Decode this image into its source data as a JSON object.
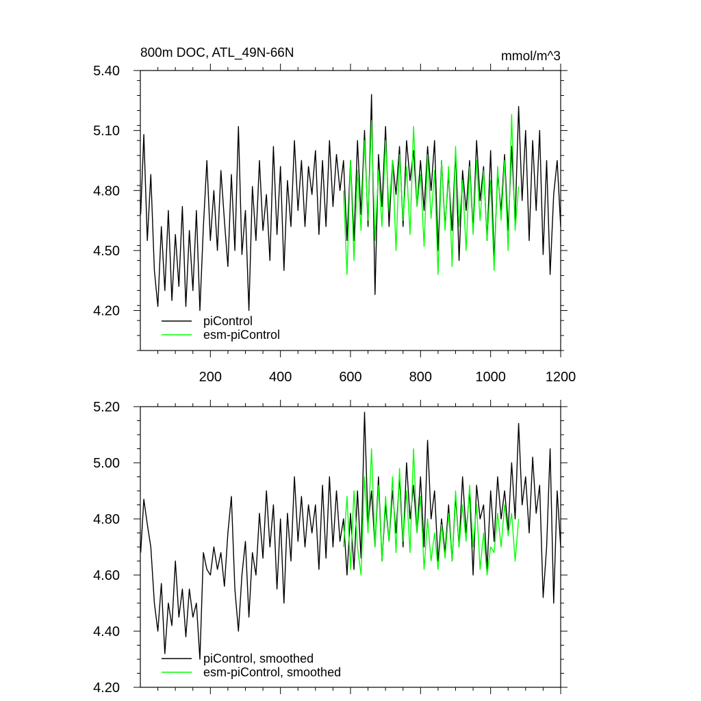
{
  "chart_data": [
    {
      "type": "line",
      "title": "800m DOC, ATL_49N-66N",
      "units": "mmol/m^3",
      "xlim": [
        0,
        1200
      ],
      "ylim": [
        4.0,
        5.4
      ],
      "x_ticks": [
        200,
        400,
        600,
        800,
        1000,
        1200
      ],
      "x_tick_labels": [
        "200",
        "400",
        "600",
        "800",
        "1000",
        "1200"
      ],
      "y_ticks": [
        4.2,
        4.5,
        4.8,
        5.1,
        5.4
      ],
      "y_tick_labels": [
        "4.20",
        "4.50",
        "4.80",
        "5.10",
        "5.40"
      ],
      "legend_position": "bottom-left",
      "series": [
        {
          "name": "piControl",
          "color": "#000000",
          "x": [
            1,
            10,
            20,
            30,
            40,
            50,
            60,
            70,
            80,
            90,
            100,
            110,
            120,
            130,
            140,
            150,
            160,
            170,
            180,
            190,
            200,
            210,
            220,
            230,
            240,
            250,
            260,
            270,
            280,
            290,
            300,
            310,
            320,
            330,
            340,
            350,
            360,
            370,
            380,
            390,
            400,
            410,
            420,
            430,
            440,
            450,
            460,
            470,
            480,
            490,
            500,
            510,
            520,
            530,
            540,
            550,
            560,
            570,
            580,
            590,
            600,
            610,
            620,
            630,
            640,
            650,
            660,
            670,
            680,
            690,
            700,
            710,
            720,
            730,
            740,
            750,
            760,
            770,
            780,
            790,
            800,
            810,
            820,
            830,
            840,
            850,
            860,
            870,
            880,
            890,
            900,
            910,
            920,
            930,
            940,
            950,
            960,
            970,
            980,
            990,
            1000,
            1010,
            1020,
            1030,
            1040,
            1050,
            1060,
            1070,
            1080,
            1090,
            1100,
            1110,
            1120,
            1130,
            1140,
            1150,
            1160,
            1170,
            1180,
            1190,
            1200
          ],
          "y": [
            4.68,
            5.08,
            4.55,
            4.88,
            4.4,
            4.22,
            4.62,
            4.3,
            4.7,
            4.25,
            4.58,
            4.32,
            4.72,
            4.22,
            4.6,
            4.3,
            4.7,
            4.2,
            4.62,
            4.95,
            4.55,
            4.8,
            4.5,
            4.9,
            4.65,
            4.42,
            4.88,
            4.5,
            5.12,
            4.48,
            4.7,
            4.2,
            4.82,
            4.55,
            4.95,
            4.6,
            4.78,
            4.45,
            5.02,
            4.58,
            4.92,
            4.4,
            4.85,
            4.62,
            5.05,
            4.7,
            4.95,
            4.62,
            4.92,
            4.78,
            5.0,
            4.58,
            4.95,
            4.62,
            5.05,
            4.72,
            4.98,
            4.8,
            4.95,
            4.55,
            4.95,
            4.55,
            5.05,
            4.68,
            5.1,
            4.62,
            5.28,
            4.28,
            4.98,
            4.72,
            5.12,
            4.62,
            4.95,
            4.78,
            5.02,
            4.62,
            5.05,
            4.85,
            5.0,
            4.72,
            4.95,
            4.7,
            5.02,
            4.8,
            5.05,
            4.5,
            4.95,
            4.62,
            4.88,
            4.6,
            5.0,
            4.45,
            4.9,
            4.7,
            4.95,
            4.6,
            5.05,
            4.75,
            4.92,
            4.55,
            5.0,
            4.45,
            4.88,
            4.7,
            4.98,
            4.6,
            5.02,
            4.65,
            5.22,
            4.75,
            5.1,
            4.55,
            5.05,
            4.7,
            5.1,
            4.48,
            4.95,
            4.38,
            4.78,
            4.95,
            4.62
          ]
        },
        {
          "name": "esm-piControl",
          "color": "#00ff00",
          "x": [
            580,
            590,
            600,
            610,
            620,
            630,
            640,
            650,
            660,
            670,
            680,
            690,
            700,
            710,
            720,
            730,
            740,
            750,
            760,
            770,
            780,
            790,
            800,
            810,
            820,
            830,
            840,
            850,
            860,
            870,
            880,
            890,
            900,
            910,
            920,
            930,
            940,
            950,
            960,
            970,
            980,
            990,
            1000,
            1010,
            1020,
            1030,
            1040,
            1050,
            1060,
            1070,
            1080
          ],
          "y": [
            4.8,
            4.38,
            4.95,
            4.45,
            4.9,
            4.6,
            5.05,
            4.65,
            5.15,
            4.55,
            4.9,
            4.62,
            5.05,
            4.7,
            4.95,
            4.5,
            4.98,
            4.65,
            4.92,
            4.58,
            5.12,
            4.72,
            4.88,
            4.52,
            4.98,
            4.66,
            4.9,
            4.38,
            4.95,
            4.6,
            4.92,
            4.42,
            5.02,
            4.62,
            4.85,
            4.5,
            4.92,
            4.58,
            4.95,
            4.65,
            4.9,
            4.55,
            4.85,
            4.4,
            4.92,
            4.65,
            4.95,
            4.5,
            5.18,
            4.6,
            4.82
          ]
        }
      ]
    },
    {
      "type": "line",
      "xlim": [
        0,
        1200
      ],
      "ylim": [
        4.2,
        5.2
      ],
      "x_ticks": [
        200,
        400,
        600,
        800,
        1000,
        1200
      ],
      "y_ticks": [
        4.2,
        4.4,
        4.6,
        4.8,
        5.0,
        5.2
      ],
      "y_tick_labels": [
        "4.20",
        "4.40",
        "4.60",
        "4.80",
        "5.00",
        "5.20"
      ],
      "legend_position": "bottom-left",
      "series": [
        {
          "name": "piControl, smoothed",
          "color": "#000000",
          "x": [
            1,
            10,
            20,
            30,
            40,
            50,
            60,
            70,
            80,
            90,
            100,
            110,
            120,
            130,
            140,
            150,
            160,
            170,
            180,
            190,
            200,
            210,
            220,
            230,
            240,
            250,
            260,
            270,
            280,
            290,
            300,
            310,
            320,
            330,
            340,
            350,
            360,
            370,
            380,
            390,
            400,
            410,
            420,
            430,
            440,
            450,
            460,
            470,
            480,
            490,
            500,
            510,
            520,
            530,
            540,
            550,
            560,
            570,
            580,
            590,
            600,
            610,
            620,
            630,
            640,
            650,
            660,
            670,
            680,
            690,
            700,
            710,
            720,
            730,
            740,
            750,
            760,
            770,
            780,
            790,
            800,
            810,
            820,
            830,
            840,
            850,
            860,
            870,
            880,
            890,
            900,
            910,
            920,
            930,
            940,
            950,
            960,
            970,
            980,
            990,
            1000,
            1010,
            1020,
            1030,
            1040,
            1050,
            1060,
            1070,
            1080,
            1090,
            1100,
            1110,
            1120,
            1130,
            1140,
            1150,
            1160,
            1170,
            1180,
            1190,
            1200
          ],
          "y": [
            4.68,
            4.87,
            4.78,
            4.7,
            4.5,
            4.4,
            4.57,
            4.32,
            4.5,
            4.42,
            4.65,
            4.45,
            4.55,
            4.38,
            4.55,
            4.45,
            4.5,
            4.3,
            4.68,
            4.62,
            4.6,
            4.7,
            4.62,
            4.68,
            4.56,
            4.75,
            4.88,
            4.55,
            4.4,
            4.6,
            4.72,
            4.45,
            4.68,
            4.6,
            4.82,
            4.66,
            4.9,
            4.7,
            4.85,
            4.55,
            4.8,
            4.5,
            4.82,
            4.65,
            4.95,
            4.72,
            4.88,
            4.7,
            4.85,
            4.75,
            4.85,
            4.62,
            4.92,
            4.66,
            4.95,
            4.7,
            4.9,
            4.72,
            4.8,
            4.6,
            4.82,
            4.62,
            4.9,
            4.66,
            5.18,
            4.78,
            4.9,
            4.7,
            4.95,
            4.65,
            4.85,
            4.72,
            4.9,
            4.75,
            4.95,
            4.7,
            5.0,
            4.8,
            4.92,
            4.75,
            4.95,
            4.7,
            5.08,
            4.8,
            4.9,
            4.65,
            4.8,
            4.68,
            4.85,
            4.65,
            4.88,
            4.7,
            4.95,
            4.75,
            4.9,
            4.6,
            4.92,
            4.8,
            4.85,
            4.62,
            4.9,
            4.72,
            4.95,
            4.8,
            4.9,
            4.76,
            5.0,
            4.8,
            5.14,
            4.85,
            4.95,
            4.75,
            5.02,
            4.82,
            4.92,
            4.52,
            4.7,
            5.05,
            4.5,
            4.9,
            4.7
          ]
        },
        {
          "name": "esm-piControl, smoothed",
          "color": "#00ff00",
          "x": [
            580,
            590,
            600,
            610,
            620,
            630,
            640,
            650,
            660,
            670,
            680,
            690,
            700,
            710,
            720,
            730,
            740,
            750,
            760,
            770,
            780,
            790,
            800,
            810,
            820,
            830,
            840,
            850,
            860,
            870,
            880,
            890,
            900,
            910,
            920,
            930,
            940,
            950,
            960,
            970,
            980,
            990,
            1000,
            1010,
            1020,
            1030,
            1040,
            1050,
            1060,
            1070,
            1080
          ],
          "y": [
            4.7,
            4.88,
            4.62,
            4.9,
            4.7,
            4.6,
            4.95,
            4.75,
            5.05,
            4.7,
            4.92,
            4.65,
            4.88,
            4.72,
            4.95,
            4.68,
            4.98,
            4.72,
            4.9,
            4.68,
            5.05,
            4.75,
            4.88,
            4.62,
            4.8,
            4.65,
            4.75,
            4.62,
            4.78,
            4.66,
            4.82,
            4.65,
            4.9,
            4.7,
            4.85,
            4.72,
            4.92,
            4.7,
            4.85,
            4.62,
            4.75,
            4.6,
            4.7,
            4.68,
            4.82,
            4.7,
            4.85,
            4.74,
            4.82,
            4.65,
            4.8
          ]
        }
      ]
    }
  ]
}
